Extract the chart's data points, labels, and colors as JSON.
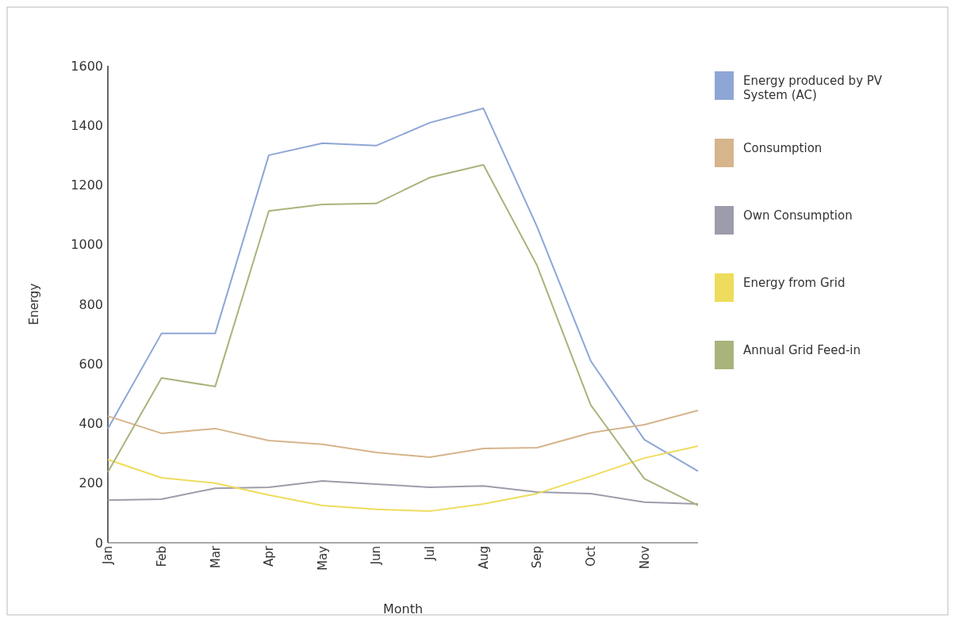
{
  "chart_data": {
    "type": "line",
    "xlabel": "Month",
    "ylabel": "Energy",
    "categories": [
      "Jan",
      "Feb",
      "Mar",
      "Apr",
      "May",
      "Jun",
      "Jul",
      "Aug",
      "Sep",
      "Oct",
      "Nov",
      null
    ],
    "ylim": [
      0,
      1600
    ],
    "yticks": [
      0,
      200,
      400,
      600,
      800,
      1000,
      1200,
      1400,
      1600
    ],
    "grid": false,
    "legend": "top right",
    "line_style": "solid",
    "series": [
      {
        "name": "Energy produced by PV System (AC)",
        "color": "#8ea6d6",
        "values": [
          383,
          702,
          702,
          1300,
          1340,
          1332,
          1409,
          1457,
          1060,
          610,
          346,
          240
        ]
      },
      {
        "name": "Consumption",
        "color": "#d6b48c",
        "values": [
          425,
          367,
          383,
          343,
          330,
          303,
          287,
          316,
          319,
          369,
          396,
          444
        ]
      },
      {
        "name": "Own Consumption",
        "color": "#9c9cac",
        "values": [
          143,
          146,
          183,
          186,
          207,
          197,
          186,
          191,
          170,
          165,
          136,
          130
        ]
      },
      {
        "name": "Energy from Grid",
        "color": "#eedc5c",
        "values": [
          279,
          218,
          200,
          160,
          125,
          112,
          106,
          130,
          165,
          223,
          284,
          324
        ]
      },
      {
        "name": "Annual Grid Feed-in",
        "color": "#a8b47c",
        "values": [
          237,
          553,
          524,
          1113,
          1135,
          1138,
          1225,
          1268,
          930,
          462,
          215,
          125
        ]
      }
    ]
  }
}
